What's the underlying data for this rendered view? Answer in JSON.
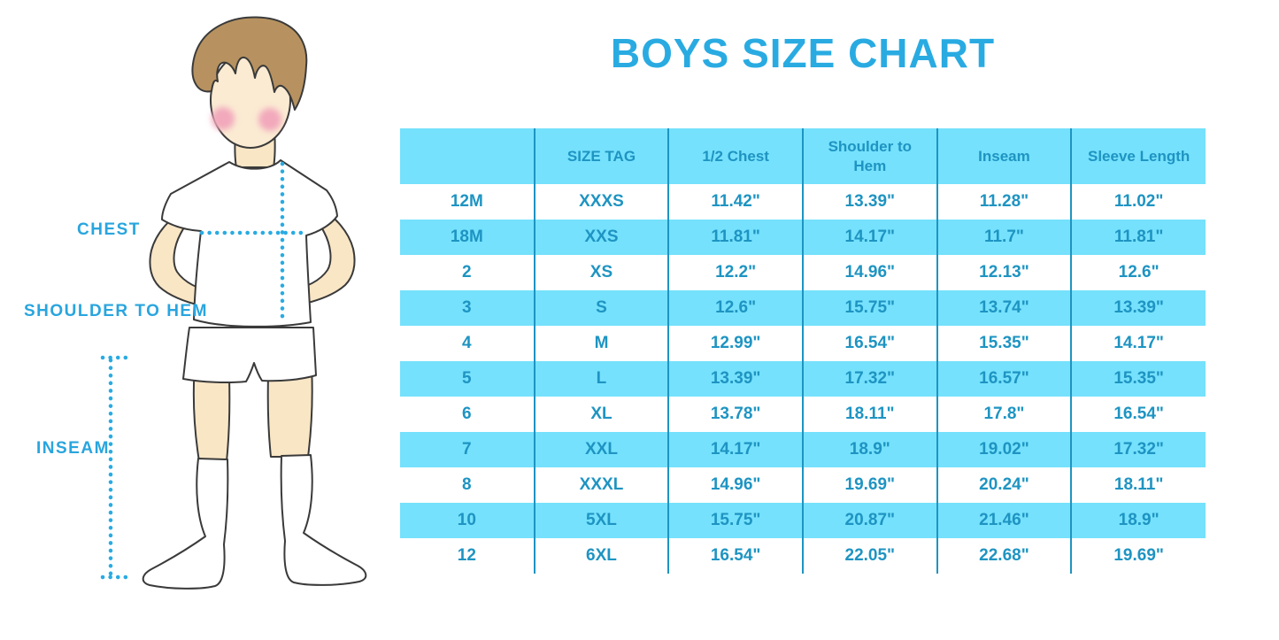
{
  "title": "BOYS SIZE CHART",
  "measurement_labels": {
    "chest": "CHEST",
    "shoulder_to_hem": "SHOULDER TO HEM",
    "inseam": "INSEAM"
  },
  "colors": {
    "title_blue": "#29ABE2",
    "label_blue": "#29A5DE",
    "table_text_teal": "#1E94C2",
    "row_cyan": "#75E1FC",
    "row_white": "#FFFFFF",
    "column_divider": "#1E94C2",
    "dotted_measure_line": "#29ABE2",
    "skin": "#F9E6C5",
    "hair_brown": "#B79260",
    "blush_pink": "#F2A9BC",
    "garment_white": "#FFFFFF",
    "outline_dark": "#3A3A3A"
  },
  "chart_data": {
    "type": "table",
    "title": "BOYS SIZE CHART",
    "columns": [
      "",
      "SIZE TAG",
      "1/2 Chest",
      "Shoulder to Hem",
      "Inseam",
      "Sleeve Length"
    ],
    "rows": [
      [
        "12M",
        "XXXS",
        "11.42\"",
        "13.39\"",
        "11.28\"",
        "11.02\""
      ],
      [
        "18M",
        "XXS",
        "11.81\"",
        "14.17\"",
        "11.7\"",
        "11.81\""
      ],
      [
        "2",
        "XS",
        "12.2\"",
        "14.96\"",
        "12.13\"",
        "12.6\""
      ],
      [
        "3",
        "S",
        "12.6\"",
        "15.75\"",
        "13.74\"",
        "13.39\""
      ],
      [
        "4",
        "M",
        "12.99\"",
        "16.54\"",
        "15.35\"",
        "14.17\""
      ],
      [
        "5",
        "L",
        "13.39\"",
        "17.32\"",
        "16.57\"",
        "15.35\""
      ],
      [
        "6",
        "XL",
        "13.78\"",
        "18.11\"",
        "17.8\"",
        "16.54\""
      ],
      [
        "7",
        "XXL",
        "14.17\"",
        "18.9\"",
        "19.02\"",
        "17.32\""
      ],
      [
        "8",
        "XXXL",
        "14.96\"",
        "19.69\"",
        "20.24\"",
        "18.11\""
      ],
      [
        "10",
        "5XL",
        "15.75\"",
        "20.87\"",
        "21.46\"",
        "18.9\""
      ],
      [
        "12",
        "6XL",
        "16.54\"",
        "22.05\"",
        "22.68\"",
        "19.69\""
      ]
    ],
    "row_striping": "white / cyan alternating, header cyan",
    "legend_position": "none",
    "grid": "vertical column dividers only"
  }
}
